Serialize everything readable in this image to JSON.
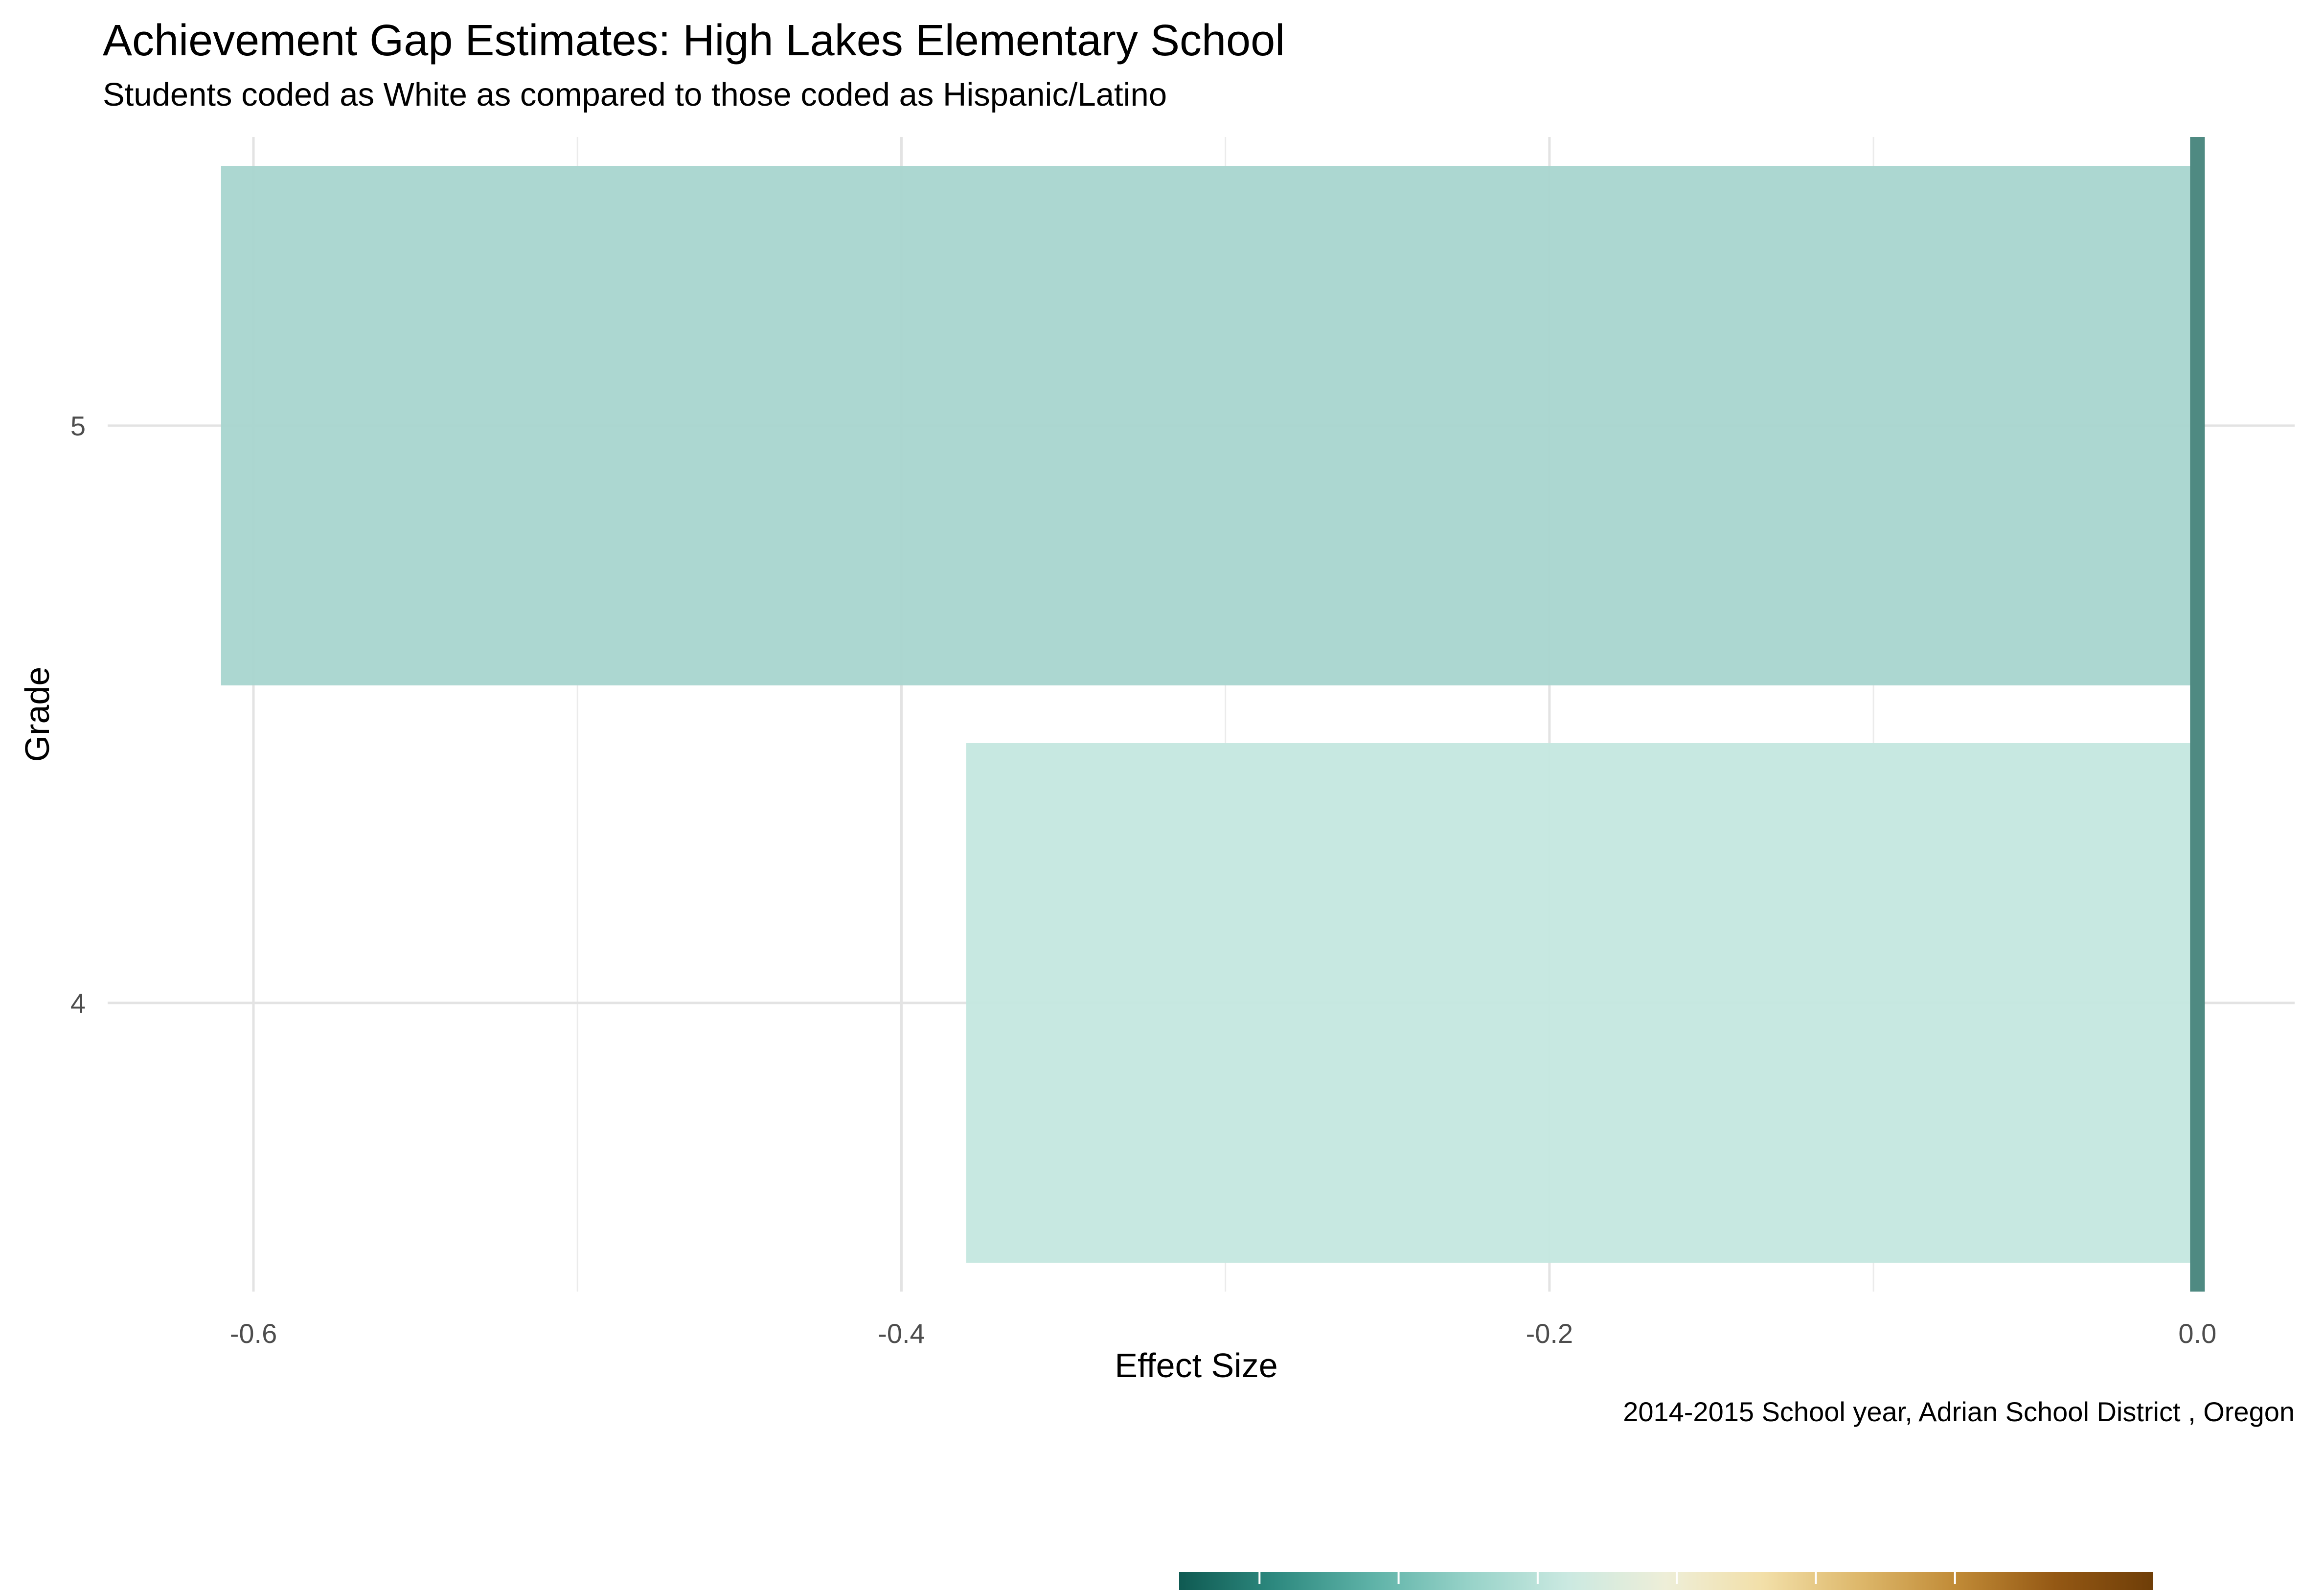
{
  "chart_data": {
    "type": "bar",
    "orientation": "horizontal",
    "title": "Achievement Gap Estimates: High Lakes Elementary School",
    "subtitle": "Students coded as White as compared to those coded as Hispanic/Latino",
    "xlabel": "Effect Size",
    "ylabel": "Grade",
    "caption": "2014-2015 School year,  Adrian School District , Oregon",
    "categories": [
      "4",
      "5"
    ],
    "values": [
      -0.38,
      -0.61
    ],
    "bar_colors": [
      "#c5e7e0",
      "#a9d6d0"
    ],
    "xlim": [
      -0.645,
      0.03
    ],
    "x_ticks": [
      -0.6,
      -0.4,
      -0.2,
      0.0
    ],
    "x_tick_labels": [
      "-0.6",
      "-0.4",
      "-0.2",
      "0.0"
    ],
    "reference_line": {
      "x": 0.0,
      "color": "#4f8a82"
    },
    "grid": true,
    "legend": {
      "type": "colorbar",
      "placement": "bottom",
      "colors": [
        "#0f5a52",
        "#2e8a80",
        "#5fb3a8",
        "#98d3c9",
        "#cbe9e1",
        "#eeeed8",
        "#f2dfa8",
        "#ddb76a",
        "#c08a36",
        "#945814",
        "#6f3e08"
      ]
    }
  }
}
